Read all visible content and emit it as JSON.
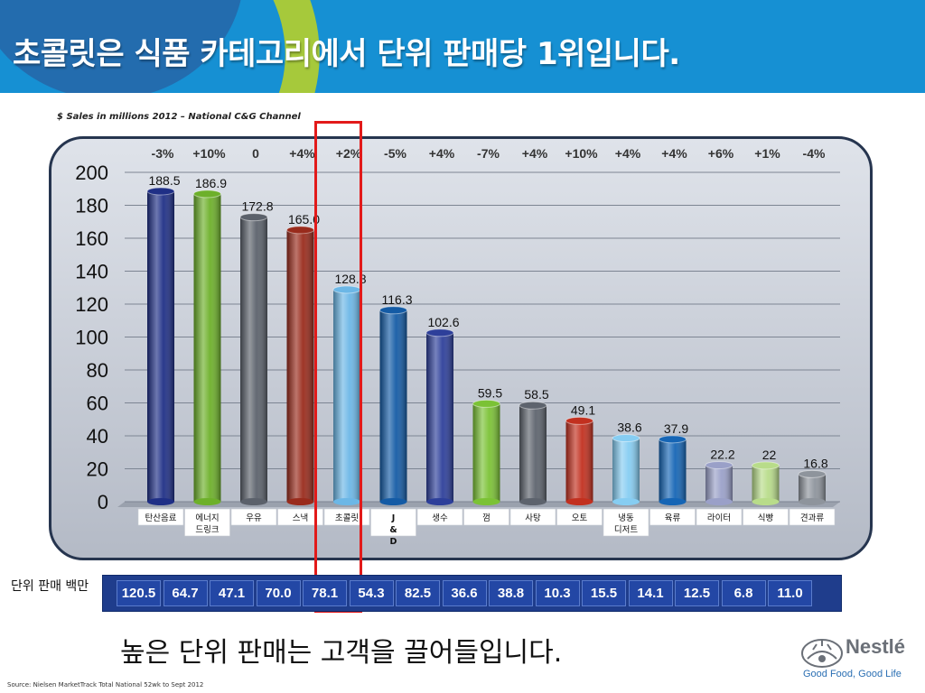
{
  "slide": {
    "title": "초콜릿은 식품 카테고리에서 단위 판매당 1위입니다.",
    "subtitle": "$ Sales in millions 2012 – National C&G Channel",
    "units_label": "단위 판매 백만",
    "footer_message": "높은 단위 판매는 고객을 끌어들입니다.",
    "source": "Source: Nielsen MarketTrack Total National 52wk to Sept 2012",
    "logo_text": "Nestlé",
    "slogan": "Good Food, Good Life"
  },
  "chart_data": {
    "type": "bar",
    "title": "",
    "xlabel": "",
    "ylabel": "",
    "ylim": [
      0,
      200
    ],
    "yticks": [
      0,
      20,
      40,
      60,
      80,
      100,
      120,
      140,
      160,
      180,
      200
    ],
    "grid": true,
    "highlight_category": "초콜릿",
    "categories": [
      "탄산음료",
      "에너지 드링크",
      "우유",
      "스낵",
      "초콜릿",
      "J & D",
      "생수",
      "껌",
      "사탕",
      "오토",
      "냉동 디저트",
      "육류",
      "라이터",
      "식빵",
      "견과류"
    ],
    "values": [
      188.5,
      186.9,
      172.8,
      165.0,
      128.8,
      116.3,
      102.6,
      59.5,
      58.5,
      49.1,
      38.6,
      37.9,
      22.2,
      22,
      16.8
    ],
    "value_labels": [
      "188.5",
      "186.9",
      "172.8",
      "165.0",
      "128.8",
      "116.3",
      "102.6",
      "59.5",
      "58.5",
      "49.1",
      "38.6",
      "37.9",
      "22.2",
      "22",
      "16.8"
    ],
    "growth": [
      "-3%",
      "+10%",
      "0",
      "+4%",
      "+2%",
      "-5%",
      "+4%",
      "-7%",
      "+4%",
      "+10%",
      "+4%",
      "+4%",
      "+6%",
      "+1%",
      "-4%"
    ],
    "unit_sales": [
      "120.5",
      "64.7",
      "47.1",
      "70.0",
      "78.1",
      "54.3",
      "82.5",
      "36.6",
      "38.8",
      "10.3",
      "15.5",
      "14.1",
      "12.5",
      "6.8",
      "11.0"
    ],
    "bar_colors": [
      "#1f2f86",
      "#6db02a",
      "#5b616b",
      "#992b1c",
      "#6cb7e6",
      "#145ba5",
      "#2d3f9a",
      "#7bc235",
      "#5d636d",
      "#c2301f",
      "#86cdf2",
      "#1565b5",
      "#9aa0c8",
      "#b8dc8a",
      "#8e949c"
    ]
  }
}
